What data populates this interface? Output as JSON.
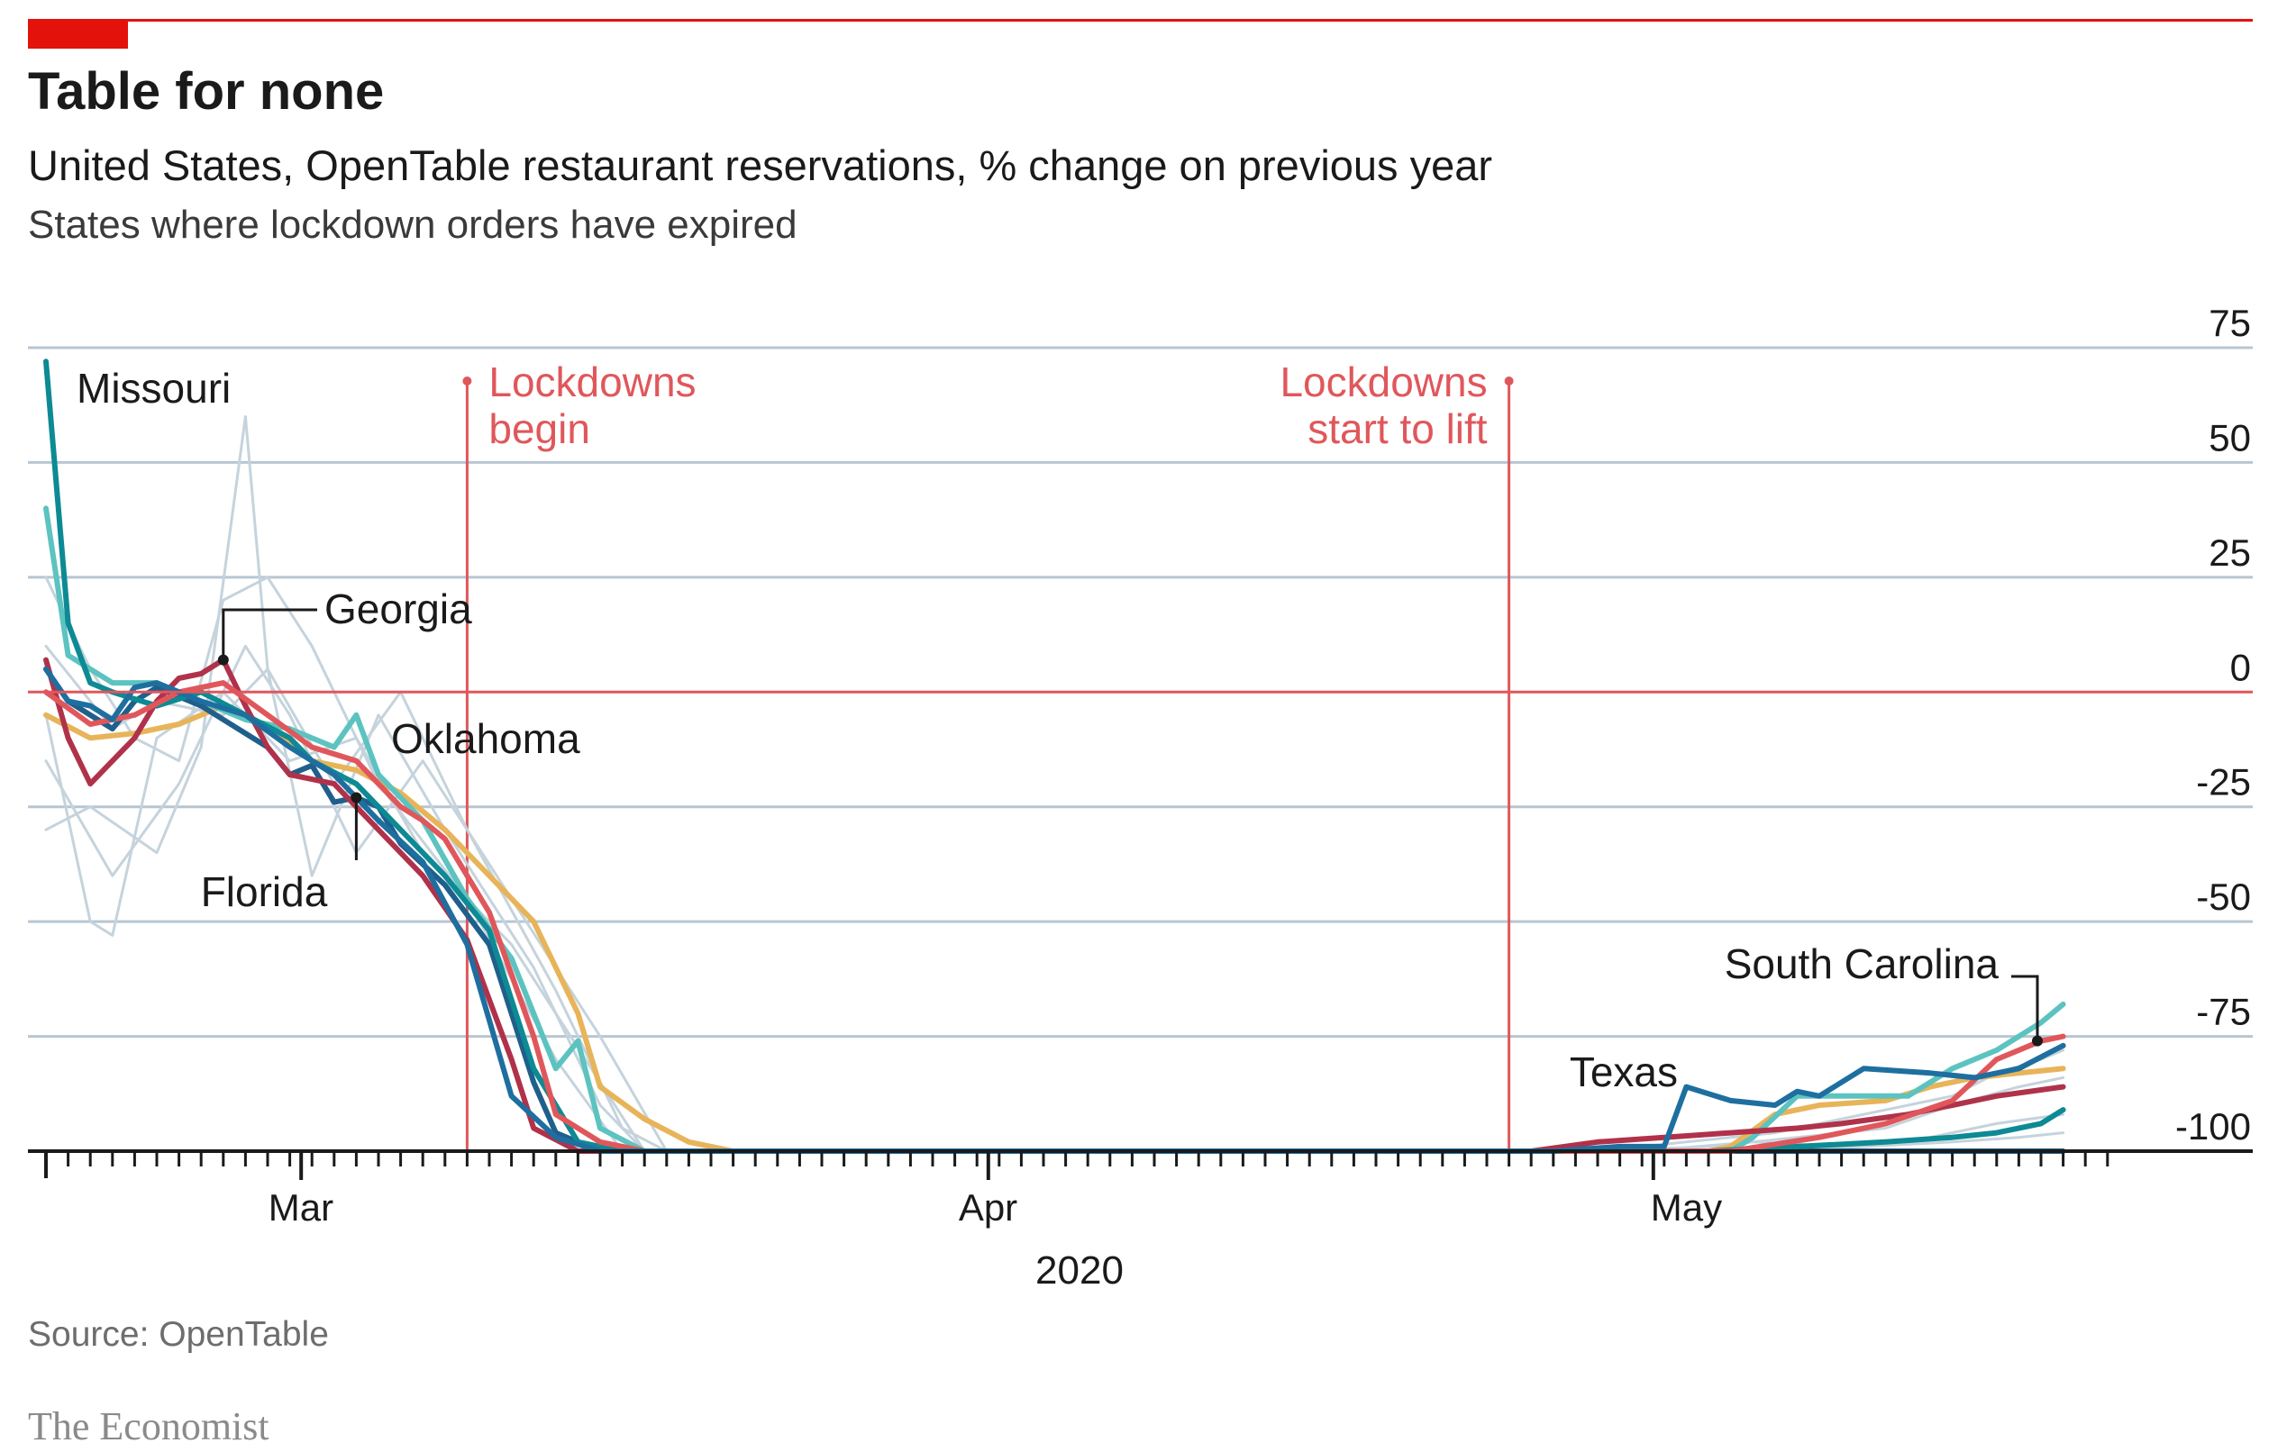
{
  "header": {
    "title": "Table for none",
    "subtitle": "United States, OpenTable restaurant reservations, % change on previous year",
    "subsubtitle": "States where lockdown orders have expired"
  },
  "footer": {
    "source": "Source: OpenTable",
    "brand": "The Economist"
  },
  "colors": {
    "accent": "#e3120b",
    "annotation": "#e0575b",
    "grid": "#b7c6d3",
    "background_series": "#c5d3dc",
    "missouri": "#0d8a93",
    "georgia": "#b0324a",
    "florida": "#1f5f8b",
    "oklahoma": "#5cc3c0",
    "south_carolina": "#e0575b",
    "texas": "#1e6fa0",
    "other_gold": "#e8b45a"
  },
  "chart_data": {
    "type": "line",
    "title": "Table for none",
    "subtitle": "United States, OpenTable restaurant reservations, % change on previous year",
    "xlabel": "2020",
    "ylabel": "",
    "x_ticks": [
      "Mar",
      "Apr",
      "May"
    ],
    "y_ticks": [
      "75",
      "50",
      "25",
      "0",
      "-25",
      "-50",
      "-75",
      "-100"
    ],
    "y_tick_values": [
      75,
      50,
      25,
      0,
      -25,
      -50,
      -75,
      -100
    ],
    "x_range": [
      "2020-02-18",
      "2020-05-21"
    ],
    "ylim": [
      -100,
      75
    ],
    "grid": true,
    "annotations": [
      {
        "text_lines": [
          "Lockdowns",
          "begin"
        ],
        "date": "2020-03-08"
      },
      {
        "text_lines": [
          "Lockdowns",
          "start to lift"
        ],
        "date": "2020-04-24"
      }
    ],
    "series_labels": [
      {
        "name": "Missouri",
        "series": "missouri"
      },
      {
        "name": "Georgia",
        "series": "georgia"
      },
      {
        "name": "Oklahoma",
        "series": "oklahoma"
      },
      {
        "name": "Florida",
        "series": "florida"
      },
      {
        "name": "South Carolina",
        "series": "south_carolina"
      },
      {
        "name": "Texas",
        "series": "texas"
      }
    ],
    "series": [
      {
        "id": "gray1",
        "color": "#c5d3dc",
        "width": 3,
        "values": [
          [
            0,
            -15
          ],
          [
            3,
            -40
          ],
          [
            6,
            -20
          ],
          [
            9,
            10
          ],
          [
            11,
            -5
          ],
          [
            14,
            -35
          ],
          [
            17,
            -15
          ],
          [
            21,
            -45
          ],
          [
            25,
            -75
          ],
          [
            28,
            -100
          ],
          [
            91,
            -100
          ]
        ]
      },
      {
        "id": "gray2",
        "color": "#c5d3dc",
        "width": 3,
        "values": [
          [
            0,
            10
          ],
          [
            3,
            -8
          ],
          [
            5,
            -2
          ],
          [
            8,
            -5
          ],
          [
            10,
            5
          ],
          [
            13,
            -20
          ],
          [
            16,
            0
          ],
          [
            19,
            -30
          ],
          [
            23,
            -65
          ],
          [
            26,
            -95
          ],
          [
            28,
            -100
          ],
          [
            91,
            -100
          ]
        ]
      },
      {
        "id": "gray3",
        "color": "#c5d3dc",
        "width": 3,
        "values": [
          [
            0,
            -30
          ],
          [
            2,
            -25
          ],
          [
            5,
            -35
          ],
          [
            7,
            -12
          ],
          [
            9,
            60
          ],
          [
            10,
            5
          ],
          [
            12,
            -40
          ],
          [
            15,
            -5
          ],
          [
            18,
            -30
          ],
          [
            22,
            -60
          ],
          [
            25,
            -90
          ],
          [
            27,
            -100
          ],
          [
            90,
            -100
          ]
        ]
      },
      {
        "id": "gray4",
        "color": "#c5d3dc",
        "width": 3,
        "values": [
          [
            0,
            25
          ],
          [
            2,
            5
          ],
          [
            4,
            -10
          ],
          [
            6,
            -15
          ],
          [
            8,
            20
          ],
          [
            10,
            25
          ],
          [
            12,
            10
          ],
          [
            15,
            -20
          ],
          [
            19,
            -45
          ],
          [
            23,
            -80
          ],
          [
            26,
            -100
          ],
          [
            91,
            -100
          ]
        ]
      },
      {
        "id": "gray5",
        "color": "#c5d3dc",
        "width": 3,
        "values": [
          [
            0,
            -5
          ],
          [
            2,
            -50
          ],
          [
            3,
            -53
          ],
          [
            5,
            -10
          ],
          [
            8,
            0
          ],
          [
            11,
            -15
          ],
          [
            14,
            -10
          ],
          [
            17,
            -35
          ],
          [
            21,
            -55
          ],
          [
            25,
            -85
          ],
          [
            27,
            -100
          ],
          [
            90,
            -100
          ]
        ]
      },
      {
        "id": "gray6",
        "color": "#c5d3dc",
        "width": 3,
        "values": [
          [
            70,
            -100
          ],
          [
            74,
            -98
          ],
          [
            78,
            -96
          ],
          [
            82,
            -92
          ],
          [
            86,
            -88
          ],
          [
            88,
            -83
          ],
          [
            90,
            -80
          ],
          [
            91,
            -78
          ]
        ]
      },
      {
        "id": "gray7",
        "color": "#c5d3dc",
        "width": 3,
        "values": [
          [
            70,
            -100
          ],
          [
            75,
            -99
          ],
          [
            79,
            -97
          ],
          [
            83,
            -95
          ],
          [
            86,
            -90
          ],
          [
            89,
            -86
          ],
          [
            91,
            -84
          ]
        ]
      },
      {
        "id": "gray8",
        "color": "#c5d3dc",
        "width": 3,
        "values": [
          [
            72,
            -100
          ],
          [
            77,
            -98
          ],
          [
            81,
            -99
          ],
          [
            85,
            -97
          ],
          [
            88,
            -94
          ],
          [
            91,
            -92
          ]
        ]
      },
      {
        "id": "gray9",
        "color": "#c5d3dc",
        "width": 3,
        "values": [
          [
            74,
            -100
          ],
          [
            78,
            -100
          ],
          [
            82,
            -99
          ],
          [
            86,
            -98
          ],
          [
            89,
            -97
          ],
          [
            91,
            -96
          ]
        ]
      },
      {
        "id": "gold",
        "color": "#e8b45a",
        "width": 6,
        "values": [
          [
            0,
            -5
          ],
          [
            2,
            -10
          ],
          [
            4,
            -9
          ],
          [
            6,
            -7
          ],
          [
            8,
            -3
          ],
          [
            10,
            -8
          ],
          [
            12,
            -15
          ],
          [
            14,
            -17
          ],
          [
            16,
            -22
          ],
          [
            18,
            -30
          ],
          [
            20,
            -40
          ],
          [
            22,
            -50
          ],
          [
            24,
            -70
          ],
          [
            25,
            -86
          ],
          [
            27,
            -93
          ],
          [
            29,
            -98
          ],
          [
            31,
            -100
          ],
          [
            75,
            -100
          ],
          [
            76,
            -99
          ],
          [
            78,
            -92
          ],
          [
            80,
            -90
          ],
          [
            83,
            -89
          ],
          [
            85,
            -86
          ],
          [
            87,
            -84
          ],
          [
            89,
            -83
          ],
          [
            91,
            -82
          ]
        ]
      },
      {
        "id": "oklahoma",
        "color": "#5cc3c0",
        "width": 6,
        "values": [
          [
            0,
            40
          ],
          [
            1,
            8
          ],
          [
            2,
            5
          ],
          [
            3,
            2
          ],
          [
            5,
            2
          ],
          [
            7,
            -2
          ],
          [
            9,
            -6
          ],
          [
            11,
            -8
          ],
          [
            13,
            -12
          ],
          [
            14,
            -5
          ],
          [
            15,
            -18
          ],
          [
            17,
            -28
          ],
          [
            19,
            -45
          ],
          [
            21,
            -58
          ],
          [
            23,
            -82
          ],
          [
            24,
            -76
          ],
          [
            25,
            -95
          ],
          [
            27,
            -100
          ],
          [
            76,
            -100
          ],
          [
            77,
            -97
          ],
          [
            79,
            -88
          ],
          [
            81,
            -88
          ],
          [
            84,
            -88
          ],
          [
            86,
            -82
          ],
          [
            88,
            -78
          ],
          [
            90,
            -72
          ],
          [
            91,
            -68
          ]
        ]
      },
      {
        "id": "florida",
        "color": "#1f5f8b",
        "width": 6,
        "values": [
          [
            0,
            5
          ],
          [
            1,
            -2
          ],
          [
            2,
            -5
          ],
          [
            3,
            -8
          ],
          [
            4,
            -2
          ],
          [
            5,
            1
          ],
          [
            7,
            -3
          ],
          [
            9,
            -9
          ],
          [
            10,
            -12
          ],
          [
            11,
            -18
          ],
          [
            12,
            -16
          ],
          [
            13,
            -24
          ],
          [
            14,
            -23
          ],
          [
            15,
            -25
          ],
          [
            16,
            -33
          ],
          [
            18,
            -42
          ],
          [
            20,
            -55
          ],
          [
            22,
            -85
          ],
          [
            23,
            -96
          ],
          [
            25,
            -100
          ],
          [
            91,
            -100
          ]
        ]
      },
      {
        "id": "missouri",
        "color": "#0d8a93",
        "width": 6,
        "values": [
          [
            0,
            72
          ],
          [
            1,
            15
          ],
          [
            2,
            2
          ],
          [
            3,
            0
          ],
          [
            5,
            -3
          ],
          [
            7,
            0
          ],
          [
            9,
            -5
          ],
          [
            11,
            -10
          ],
          [
            12,
            -15
          ],
          [
            14,
            -20
          ],
          [
            16,
            -30
          ],
          [
            18,
            -40
          ],
          [
            20,
            -52
          ],
          [
            22,
            -82
          ],
          [
            24,
            -98
          ],
          [
            26,
            -100
          ],
          [
            75,
            -100
          ],
          [
            79,
            -99
          ],
          [
            83,
            -98
          ],
          [
            86,
            -97
          ],
          [
            88,
            -96
          ],
          [
            90,
            -94
          ],
          [
            91,
            -91
          ]
        ]
      },
      {
        "id": "georgia",
        "color": "#b0324a",
        "width": 6,
        "values": [
          [
            0,
            7
          ],
          [
            1,
            -10
          ],
          [
            2,
            -20
          ],
          [
            3,
            -15
          ],
          [
            4,
            -10
          ],
          [
            5,
            -2
          ],
          [
            6,
            3
          ],
          [
            7,
            4
          ],
          [
            8,
            7
          ],
          [
            9,
            -3
          ],
          [
            10,
            -12
          ],
          [
            11,
            -18
          ],
          [
            12,
            -19
          ],
          [
            13,
            -20
          ],
          [
            15,
            -30
          ],
          [
            17,
            -40
          ],
          [
            19,
            -54
          ],
          [
            21,
            -80
          ],
          [
            22,
            -95
          ],
          [
            24,
            -100
          ],
          [
            67,
            -100
          ],
          [
            70,
            -98
          ],
          [
            73,
            -97
          ],
          [
            76,
            -96
          ],
          [
            79,
            -95
          ],
          [
            81,
            -94
          ],
          [
            84,
            -92
          ],
          [
            86,
            -90
          ],
          [
            88,
            -88
          ],
          [
            91,
            -86
          ]
        ]
      },
      {
        "id": "south_carolina",
        "color": "#e0575b",
        "width": 6,
        "values": [
          [
            0,
            0
          ],
          [
            2,
            -7
          ],
          [
            4,
            -5
          ],
          [
            6,
            0
          ],
          [
            8,
            2
          ],
          [
            10,
            -5
          ],
          [
            12,
            -12
          ],
          [
            14,
            -15
          ],
          [
            16,
            -25
          ],
          [
            17,
            -28
          ],
          [
            18,
            -32
          ],
          [
            20,
            -48
          ],
          [
            22,
            -75
          ],
          [
            23,
            -92
          ],
          [
            25,
            -98
          ],
          [
            27,
            -100
          ],
          [
            76,
            -100
          ],
          [
            80,
            -97
          ],
          [
            83,
            -94
          ],
          [
            86,
            -89
          ],
          [
            88,
            -80
          ],
          [
            90,
            -76
          ],
          [
            91,
            -75
          ]
        ]
      },
      {
        "id": "texas",
        "color": "#1e6fa0",
        "width": 6,
        "values": [
          [
            0,
            5
          ],
          [
            1,
            -2
          ],
          [
            2,
            -3
          ],
          [
            3,
            -6
          ],
          [
            4,
            1
          ],
          [
            5,
            2
          ],
          [
            7,
            -2
          ],
          [
            9,
            -5
          ],
          [
            11,
            -12
          ],
          [
            13,
            -18
          ],
          [
            15,
            -28
          ],
          [
            17,
            -37
          ],
          [
            19,
            -55
          ],
          [
            21,
            -88
          ],
          [
            23,
            -97
          ],
          [
            25,
            -100
          ],
          [
            68,
            -100
          ],
          [
            71,
            -99
          ],
          [
            73,
            -99
          ],
          [
            74,
            -86
          ],
          [
            76,
            -89
          ],
          [
            78,
            -90
          ],
          [
            79,
            -87
          ],
          [
            80,
            -88
          ],
          [
            82,
            -82
          ],
          [
            85,
            -83
          ],
          [
            87,
            -84
          ],
          [
            89,
            -82
          ],
          [
            91,
            -77
          ]
        ]
      }
    ]
  }
}
